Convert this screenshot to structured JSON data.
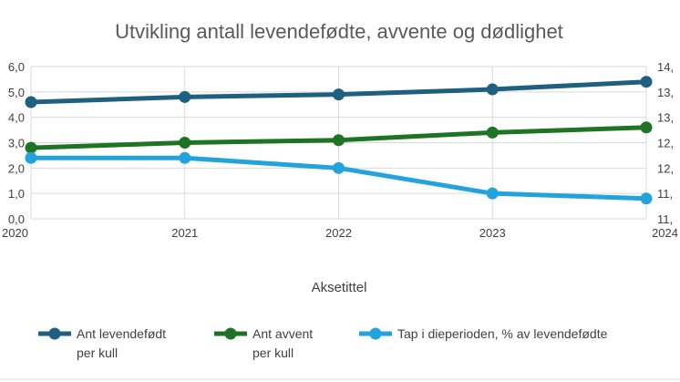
{
  "chart_data": {
    "type": "line",
    "title": "Utvikling antall levendefødte, avvente og dødlighet",
    "xlabel": "Aksetittel",
    "ylabel": "",
    "x": [
      "2020",
      "2021",
      "2022",
      "2023",
      "2024"
    ],
    "y_left": {
      "ticks": [
        "0,0",
        "1,0",
        "2,0",
        "3,0",
        "4,0",
        "5,0",
        "6,0"
      ],
      "ylim": [
        0,
        6
      ]
    },
    "y_right": {
      "ticks": [
        "11,",
        "11,",
        "12,",
        "12,",
        "13,",
        "13,",
        "14,"
      ],
      "ylim": [
        11.0,
        14.0
      ]
    },
    "series": [
      {
        "name": "Ant levendefødt per kull",
        "legend_lines": [
          "Ant levendefødt",
          "per kull"
        ],
        "axis": "right",
        "color": "#1f5f7f",
        "values": [
          13.3,
          13.4,
          13.45,
          13.55,
          13.7
        ]
      },
      {
        "name": "Ant avvent per kull",
        "legend_lines": [
          "Ant avvent",
          "per kull"
        ],
        "axis": "right",
        "color": "#1e7324",
        "values": [
          12.4,
          12.5,
          12.55,
          12.7,
          12.8
        ]
      },
      {
        "name": "Tap i dieperioden, % av levendefødte",
        "legend_lines": [
          "Tap i dieperioden, % av levendefødte"
        ],
        "axis": "left",
        "color": "#23a3db",
        "values": [
          2.4,
          2.4,
          2.0,
          1.0,
          0.8
        ]
      }
    ],
    "grid": true,
    "legend_position": "bottom"
  }
}
